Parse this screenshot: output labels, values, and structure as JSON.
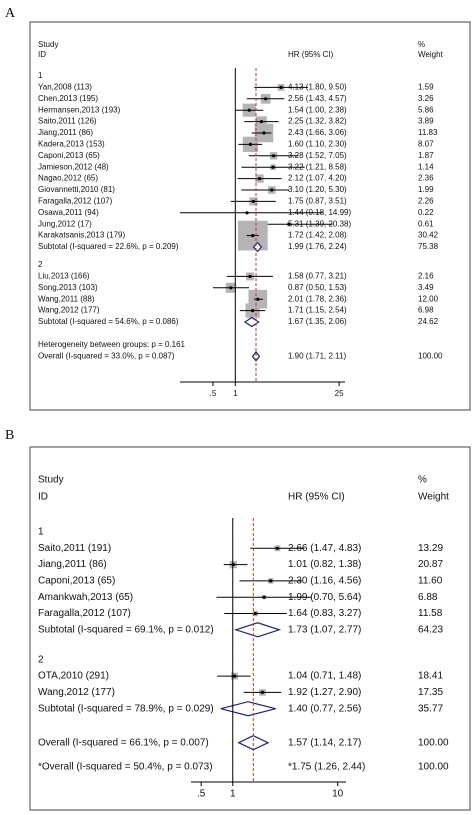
{
  "chart_data": [
    {
      "type": "forest",
      "panel": "A",
      "header": {
        "study": "Study",
        "id": "ID",
        "effect": "HR (95% CI)",
        "pct": "%",
        "weight": "Weight"
      },
      "groups": [
        {
          "name": "1",
          "studies": [
            {
              "label": "Yan,2008 (113)",
              "hr": 4.13,
              "lower": 1.8,
              "upper": 9.5,
              "ci_label": "4.13 (1.80, 9.50)",
              "weight": 1.59,
              "weight_label": "1.59"
            },
            {
              "label": "Chen,2013 (195)",
              "hr": 2.56,
              "lower": 1.43,
              "upper": 4.57,
              "ci_label": "2.56 (1.43, 4.57)",
              "weight": 3.26,
              "weight_label": "3.26"
            },
            {
              "label": "Hermansen,2013 (193)",
              "hr": 1.54,
              "lower": 1.0,
              "upper": 2.38,
              "ci_label": "1.54 (1.00, 2.38)",
              "weight": 5.86,
              "weight_label": "5.86"
            },
            {
              "label": "Saito,2011 (126)",
              "hr": 2.25,
              "lower": 1.32,
              "upper": 3.82,
              "ci_label": "2.25 (1.32, 3.82)",
              "weight": 3.89,
              "weight_label": "3.89"
            },
            {
              "label": "Jiang,2011 (86)",
              "hr": 2.43,
              "lower": 1.66,
              "upper": 3.06,
              "ci_label": "2.43 (1.66, 3.06)",
              "weight": 11.83,
              "weight_label": "11.83"
            },
            {
              "label": "Kadera,2013 (153)",
              "hr": 1.6,
              "lower": 1.1,
              "upper": 2.3,
              "ci_label": "1.60 (1.10, 2.30)",
              "weight": 8.07,
              "weight_label": "8.07"
            },
            {
              "label": "Caponi,2013 (65)",
              "hr": 3.28,
              "lower": 1.52,
              "upper": 7.05,
              "ci_label": "3.28 (1.52, 7.05)",
              "weight": 1.87,
              "weight_label": "1.87"
            },
            {
              "label": "Jamieson,2012 (48)",
              "hr": 3.22,
              "lower": 1.21,
              "upper": 8.58,
              "ci_label": "3.22 (1.21, 8.58)",
              "weight": 1.14,
              "weight_label": "1.14"
            },
            {
              "label": "Nagao,2012 (65)",
              "hr": 2.12,
              "lower": 1.07,
              "upper": 4.2,
              "ci_label": "2.12 (1.07, 4.20)",
              "weight": 2.36,
              "weight_label": "2.36"
            },
            {
              "label": "Giovannetti,2010 (81)",
              "hr": 3.1,
              "lower": 1.2,
              "upper": 5.3,
              "ci_label": "3.10 (1.20, 5.30)",
              "weight": 1.99,
              "weight_label": "1.99"
            },
            {
              "label": "Faragalla,2012 (107)",
              "hr": 1.75,
              "lower": 0.87,
              "upper": 3.51,
              "ci_label": "1.75 (0.87, 3.51)",
              "weight": 2.26,
              "weight_label": "2.26"
            },
            {
              "label": "Osawa,2011 (94)",
              "hr": 1.44,
              "lower": 0.18,
              "upper": 14.99,
              "ci_label": "1.44 (0.18, 14.99)",
              "weight": 0.22,
              "weight_label": "0.22"
            },
            {
              "label": "Jung,2012 (17)",
              "hr": 5.31,
              "lower": 1.39,
              "upper": 20.38,
              "ci_label": "5.31 (1.39, 20.38)",
              "weight": 0.61,
              "weight_label": "0.61"
            },
            {
              "label": "Karakatsanis,2013 (179)",
              "hr": 1.72,
              "lower": 1.42,
              "upper": 2.08,
              "ci_label": "1.72 (1.42, 2.08)",
              "weight": 30.42,
              "weight_label": "30.42"
            }
          ],
          "subtotal": {
            "label": "Subtotal (I-squared = 22.6%, p = 0.209)",
            "hr": 1.99,
            "lower": 1.76,
            "upper": 2.24,
            "ci_label": "1.99 (1.76, 2.24)",
            "weight": 75.38,
            "weight_label": "75.38"
          }
        },
        {
          "name": "2",
          "studies": [
            {
              "label": "Liu,2013 (166)",
              "hr": 1.58,
              "lower": 0.77,
              "upper": 3.21,
              "ci_label": "1.58 (0.77, 3.21)",
              "weight": 2.16,
              "weight_label": "2.16"
            },
            {
              "label": "Song,2013 (103)",
              "hr": 0.87,
              "lower": 0.5,
              "upper": 1.53,
              "ci_label": "0.87 (0.50, 1.53)",
              "weight": 3.49,
              "weight_label": "3.49"
            },
            {
              "label": "Wang,2011 (88)",
              "hr": 2.01,
              "lower": 1.78,
              "upper": 2.36,
              "ci_label": "2.01 (1.78, 2.36)",
              "weight": 12.0,
              "weight_label": "12.00"
            },
            {
              "label": "Wang,2012 (177)",
              "hr": 1.71,
              "lower": 1.15,
              "upper": 2.54,
              "ci_label": "1.71 (1.15, 2.54)",
              "weight": 6.98,
              "weight_label": "6.98"
            }
          ],
          "subtotal": {
            "label": "Subtotal (I-squared = 54.6%, p = 0.086)",
            "hr": 1.67,
            "lower": 1.35,
            "upper": 2.06,
            "ci_label": "1.67 (1.35, 2.06)",
            "weight": 24.62,
            "weight_label": "24.62"
          }
        }
      ],
      "heterogeneity": "Heterogeneity between groups: p = 0.161",
      "overall": [
        {
          "label": "Overall (I-squared = 33.0%, p = 0.087)",
          "hr": 1.9,
          "lower": 1.71,
          "upper": 2.11,
          "ci_label": "1.90 (1.71, 2.11)",
          "weight": 100,
          "weight_label": "100.00"
        }
      ],
      "log_scale": true,
      "xlim": [
        0.18,
        30
      ],
      "xticks": [
        {
          "value": 0.5,
          "label": ".5"
        },
        1,
        25
      ],
      "reference_line": 1,
      "box_color": "#b4b4b4",
      "diamond_color": "#1a237e",
      "estimate_line_color": "#c0392b"
    },
    {
      "type": "forest",
      "panel": "B",
      "header": {
        "study": "Study",
        "id": "ID",
        "effect": "HR (95% CI)",
        "pct": "%",
        "weight": "Weight"
      },
      "groups": [
        {
          "name": "1",
          "studies": [
            {
              "label": "Saito,2011 (191)",
              "hr": 2.66,
              "lower": 1.47,
              "upper": 4.83,
              "ci_label": "2.66 (1.47, 4.83)",
              "weight": 13.29,
              "weight_label": "13.29"
            },
            {
              "label": "Jiang,2011 (86)",
              "hr": 1.01,
              "lower": 0.82,
              "upper": 1.38,
              "ci_label": "1.01 (0.82, 1.38)",
              "weight": 20.87,
              "weight_label": "20.87"
            },
            {
              "label": "Caponi,2013 (65)",
              "hr": 2.3,
              "lower": 1.16,
              "upper": 4.56,
              "ci_label": "2.30 (1.16, 4.56)",
              "weight": 11.6,
              "weight_label": "11.60"
            },
            {
              "label": "Amankwah,2013 (65)",
              "hr": 1.99,
              "lower": 0.7,
              "upper": 5.64,
              "ci_label": "1.99 (0.70, 5.64)",
              "weight": 6.88,
              "weight_label": "6.88"
            },
            {
              "label": "Faragalla,2012 (107)",
              "hr": 1.64,
              "lower": 0.83,
              "upper": 3.27,
              "ci_label": "1.64 (0.83, 3.27)",
              "weight": 11.58,
              "weight_label": "11.58"
            }
          ],
          "subtotal": {
            "label": "Subtotal (I-squared = 69.1%, p = 0.012)",
            "hr": 1.73,
            "lower": 1.07,
            "upper": 2.77,
            "ci_label": "1.73 (1.07, 2.77)",
            "weight": 64.23,
            "weight_label": "64.23"
          }
        },
        {
          "name": "2",
          "studies": [
            {
              "label": "OTA,2010 (291)",
              "hr": 1.04,
              "lower": 0.71,
              "upper": 1.48,
              "ci_label": "1.04 (0.71, 1.48)",
              "weight": 18.41,
              "weight_label": "18.41"
            },
            {
              "label": "Wang,2012 (177)",
              "hr": 1.92,
              "lower": 1.27,
              "upper": 2.9,
              "ci_label": "1.92 (1.27, 2.90)",
              "weight": 17.35,
              "weight_label": "17.35"
            }
          ],
          "subtotal": {
            "label": "Subtotal (I-squared = 78.9%, p = 0.029)",
            "hr": 1.4,
            "lower": 0.77,
            "upper": 2.56,
            "ci_label": "1.40 (0.77, 2.56)",
            "weight": 35.77,
            "weight_label": "35.77"
          }
        }
      ],
      "overall": [
        {
          "label": "Overall (I-squared = 66.1%, p = 0.007)",
          "hr": 1.57,
          "lower": 1.14,
          "upper": 2.17,
          "ci_label": "1.57 (1.14, 2.17)",
          "weight": 100,
          "weight_label": "100.00"
        },
        {
          "label": "*Overall (I-squared = 50.4%, p = 0.073)",
          "hr": 1.75,
          "lower": 1.26,
          "upper": 2.44,
          "ci_label": "*1.75 (1.26, 2.44)",
          "weight": 100,
          "weight_label": "100.00",
          "show_marker": false
        }
      ],
      "log_scale": true,
      "xlim": [
        0.4,
        12
      ],
      "xticks": [
        {
          "value": 0.5,
          "label": ".5"
        },
        1,
        10
      ],
      "reference_line": 1,
      "box_color": "#b4b4b4",
      "diamond_color": "#1a237e",
      "estimate_line_color": "#c0392b"
    }
  ]
}
